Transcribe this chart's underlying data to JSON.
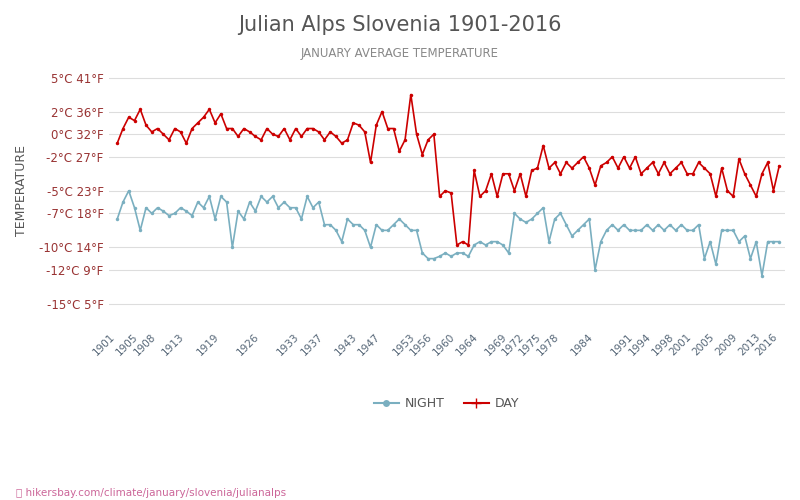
{
  "title": "Julian Alps Slovenia 1901-2016",
  "subtitle": "JANUARY AVERAGE TEMPERATURE",
  "ylabel": "TEMPERATURE",
  "xlabel_url": "hikersbay.com/climate/january/slovenia/julianalps",
  "yticks_c": [
    5,
    2,
    0,
    -2,
    -5,
    -7,
    -10,
    -12,
    -15
  ],
  "yticks_f": [
    41,
    36,
    32,
    27,
    23,
    18,
    14,
    9,
    5
  ],
  "ylim": [
    -17,
    7
  ],
  "years": [
    1901,
    1902,
    1903,
    1904,
    1905,
    1906,
    1907,
    1908,
    1909,
    1910,
    1911,
    1912,
    1913,
    1914,
    1915,
    1916,
    1917,
    1918,
    1919,
    1920,
    1921,
    1922,
    1923,
    1924,
    1925,
    1926,
    1927,
    1928,
    1929,
    1930,
    1931,
    1932,
    1933,
    1934,
    1935,
    1936,
    1937,
    1938,
    1939,
    1940,
    1941,
    1942,
    1943,
    1944,
    1945,
    1946,
    1947,
    1948,
    1949,
    1950,
    1951,
    1952,
    1953,
    1954,
    1955,
    1956,
    1957,
    1958,
    1959,
    1960,
    1961,
    1962,
    1963,
    1964,
    1965,
    1966,
    1967,
    1968,
    1969,
    1970,
    1971,
    1972,
    1973,
    1974,
    1975,
    1976,
    1977,
    1978,
    1979,
    1980,
    1981,
    1982,
    1983,
    1984,
    1985,
    1986,
    1987,
    1988,
    1989,
    1990,
    1991,
    1992,
    1993,
    1994,
    1995,
    1996,
    1997,
    1998,
    1999,
    2000,
    2001,
    2002,
    2003,
    2004,
    2005,
    2006,
    2007,
    2008,
    2009,
    2010,
    2011,
    2012,
    2013,
    2014,
    2015,
    2016
  ],
  "day": [
    -0.8,
    0.5,
    1.5,
    1.2,
    2.2,
    0.8,
    0.2,
    0.5,
    0.0,
    -0.5,
    0.5,
    0.2,
    -0.8,
    0.5,
    1.0,
    1.5,
    2.2,
    1.0,
    1.8,
    0.5,
    0.5,
    -0.2,
    0.5,
    0.2,
    -0.2,
    -0.5,
    0.5,
    0.0,
    -0.2,
    0.5,
    -0.5,
    0.5,
    -0.2,
    0.5,
    0.5,
    0.2,
    -0.5,
    0.2,
    -0.2,
    -0.8,
    -0.5,
    1.0,
    0.8,
    0.2,
    -2.5,
    0.8,
    2.0,
    0.5,
    0.5,
    -1.5,
    -0.5,
    3.5,
    0.0,
    -1.8,
    -0.5,
    0.0,
    -5.5,
    -5.0,
    -5.2,
    -9.8,
    -9.5,
    -9.8,
    -3.2,
    -5.5,
    -5.0,
    -3.5,
    -5.5,
    -3.5,
    -3.5,
    -5.0,
    -3.5,
    -5.5,
    -3.2,
    -3.0,
    -1.0,
    -3.0,
    -2.5,
    -3.5,
    -2.5,
    -3.0,
    -2.5,
    -2.0,
    -3.0,
    -4.5,
    -2.8,
    -2.5,
    -2.0,
    -3.0,
    -2.0,
    -3.0,
    -2.0,
    -3.5,
    -3.0,
    -2.5,
    -3.5,
    -2.5,
    -3.5,
    -3.0,
    -2.5,
    -3.5,
    -3.5,
    -2.5,
    -3.0,
    -3.5,
    -5.5,
    -3.0,
    -5.0,
    -5.5,
    -2.2,
    -3.5,
    -4.5,
    -5.5,
    -3.5,
    -2.5,
    -5.0,
    -2.8
  ],
  "night": [
    -7.5,
    -6.0,
    -5.0,
    -6.5,
    -8.5,
    -6.5,
    -7.0,
    -6.5,
    -6.8,
    -7.2,
    -7.0,
    -6.5,
    -6.8,
    -7.2,
    -6.0,
    -6.5,
    -5.5,
    -7.5,
    -5.5,
    -6.0,
    -10.0,
    -6.8,
    -7.5,
    -6.0,
    -6.8,
    -5.5,
    -6.0,
    -5.5,
    -6.5,
    -6.0,
    -6.5,
    -6.5,
    -7.5,
    -5.5,
    -6.5,
    -6.0,
    -8.0,
    -8.0,
    -8.5,
    -9.5,
    -7.5,
    -8.0,
    -8.0,
    -8.5,
    -10.0,
    -8.0,
    -8.5,
    -8.5,
    -8.0,
    -7.5,
    -8.0,
    -8.5,
    -8.5,
    -10.5,
    -11.0,
    -11.0,
    -10.8,
    -10.5,
    -10.8,
    -10.5,
    -10.5,
    -10.8,
    -9.8,
    -9.5,
    -9.8,
    -9.5,
    -9.5,
    -9.8,
    -10.5,
    -7.0,
    -7.5,
    -7.8,
    -7.5,
    -7.0,
    -6.5,
    -9.5,
    -7.5,
    -7.0,
    -8.0,
    -9.0,
    -8.5,
    -8.0,
    -7.5,
    -12.0,
    -9.5,
    -8.5,
    -8.0,
    -8.5,
    -8.0,
    -8.5,
    -8.5,
    -8.5,
    -8.0,
    -8.5,
    -8.0,
    -8.5,
    -8.0,
    -8.5,
    -8.0,
    -8.5,
    -8.5,
    -8.0,
    -11.0,
    -9.5,
    -11.5,
    -8.5,
    -8.5,
    -8.5,
    -9.5,
    -9.0,
    -11.0,
    -9.5,
    -12.5,
    -9.5,
    -9.5,
    -9.5
  ],
  "day_color": "#cc0000",
  "night_color": "#7aafc0",
  "title_color": "#555555",
  "subtitle_color": "#888888",
  "ylabel_color": "#555555",
  "tick_color": "#993333",
  "grid_color": "#dddddd",
  "background_color": "#ffffff",
  "xtick_color": "#556677",
  "xtick_labels": [
    "1901",
    "1905",
    "1908",
    "1913",
    "1919",
    "1926",
    "1933",
    "1937",
    "1943",
    "1947",
    "1953",
    "1956",
    "1960",
    "1964",
    "1969",
    "1972",
    "1975",
    "1978",
    "1984",
    "1991",
    "1994",
    "1998",
    "2001",
    "2005",
    "2009",
    "2013",
    "2016"
  ],
  "legend_night": "NIGHT",
  "legend_day": "DAY"
}
